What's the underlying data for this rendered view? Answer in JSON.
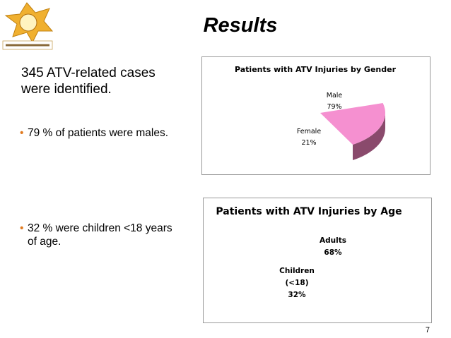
{
  "header": {
    "title": "Results"
  },
  "body": {
    "intro": "345 ATV-related cases\nwere identified.",
    "bullets": [
      "79 % of patients were males.",
      "32 % were children <18 years\nof age."
    ]
  },
  "page_number": "7",
  "chart_data": [
    {
      "type": "pie",
      "title": "Patients with ATV Injuries by Gender",
      "categories": [
        "Male",
        "Female"
      ],
      "values": [
        79,
        21
      ],
      "value_labels": [
        "79%",
        "21%"
      ],
      "colors": [
        "#ffffff",
        "#f590d0"
      ],
      "side_colors": [
        "#ffffff",
        "#8a4a6c"
      ]
    },
    {
      "type": "pie",
      "title": "Patients with ATV Injuries by Age",
      "categories": [
        "Adults",
        "Children\n(<18)"
      ],
      "values": [
        68,
        32
      ],
      "value_labels": [
        "68%",
        "32%"
      ],
      "colors": [
        "#ffffff",
        "#ffffff"
      ],
      "side_colors": [
        "#ffffff",
        "#ffffff"
      ]
    }
  ]
}
